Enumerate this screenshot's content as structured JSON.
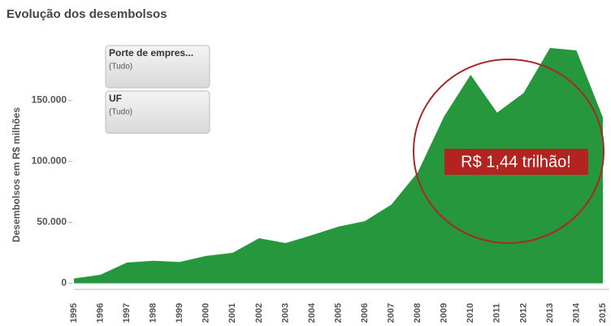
{
  "chart_data": {
    "type": "area",
    "title": "Evolução dos desembolsos",
    "y_label": "Desembolsos em R$ milhões",
    "categories": [
      "1995",
      "1996",
      "1997",
      "1998",
      "1999",
      "2000",
      "2001",
      "2002",
      "2003",
      "2004",
      "2005",
      "2006",
      "2007",
      "2008",
      "2009",
      "2010",
      "2011",
      "2012",
      "2013",
      "2014",
      "2015"
    ],
    "values": [
      4000,
      7000,
      17000,
      18500,
      17500,
      22500,
      25000,
      37000,
      33000,
      39500,
      46500,
      51000,
      64500,
      91000,
      137000,
      171000,
      140000,
      156000,
      193000,
      191000,
      136000
    ],
    "color": "#27973d",
    "ylim": [
      -5000,
      195000
    ],
    "yticks": [
      0,
      {
        "value": 50000,
        "label": "50.000"
      },
      {
        "value": 100000,
        "label": "100.000"
      },
      {
        "value": 150000,
        "label": "150.000"
      }
    ],
    "filters": [
      {
        "title": "Porte de empres...",
        "value": "(Tudo)"
      },
      {
        "title": "UF",
        "value": "(Tudo)"
      }
    ],
    "annotation": "R$ 1,44 trilhão!"
  }
}
